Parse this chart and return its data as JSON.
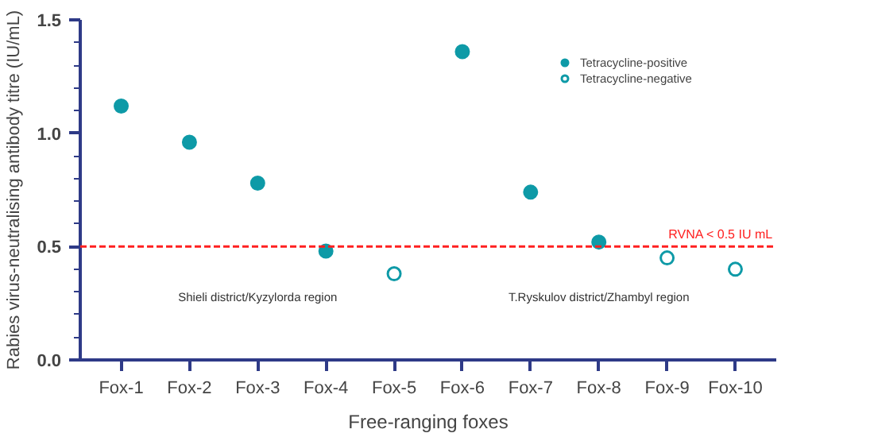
{
  "chart_data": {
    "type": "scatter",
    "xlabel": "Free-ranging foxes",
    "ylabel": "Rabies virus-neutralising antibody titre (IU/mL)",
    "categories": [
      "Fox-1",
      "Fox-2",
      "Fox-3",
      "Fox-4",
      "Fox-5",
      "Fox-6",
      "Fox-7",
      "Fox-8",
      "Fox-9",
      "Fox-10"
    ],
    "series": [
      {
        "name": "Tetracycline-positive",
        "color": "#0e9aa7",
        "marker": "circle",
        "values": [
          1.12,
          0.96,
          0.78,
          0.48,
          null,
          1.36,
          0.74,
          0.52,
          null,
          null
        ]
      },
      {
        "name": "Tetracycline-negative",
        "color": "#0e9aa7",
        "marker": "circle_open",
        "values": [
          null,
          null,
          null,
          null,
          0.38,
          null,
          null,
          null,
          0.45,
          0.4
        ]
      }
    ],
    "ylim": [
      0,
      1.5
    ],
    "yticks": [
      {
        "value": 0,
        "label": "0.0"
      },
      0.5,
      {
        "value": 1,
        "label": "1.0"
      },
      1.5
    ],
    "ref_lines": [
      {
        "axis": "y",
        "value": 0.5,
        "label": "RVNA < 0.5 IU mL",
        "color": "#ff2020",
        "line_style": "dashed"
      }
    ],
    "annotations": [
      "Shieli district/Kyzylorda region",
      "T.Ryskulov district/Zhambyl region"
    ],
    "legend": "top right",
    "grid": false
  }
}
